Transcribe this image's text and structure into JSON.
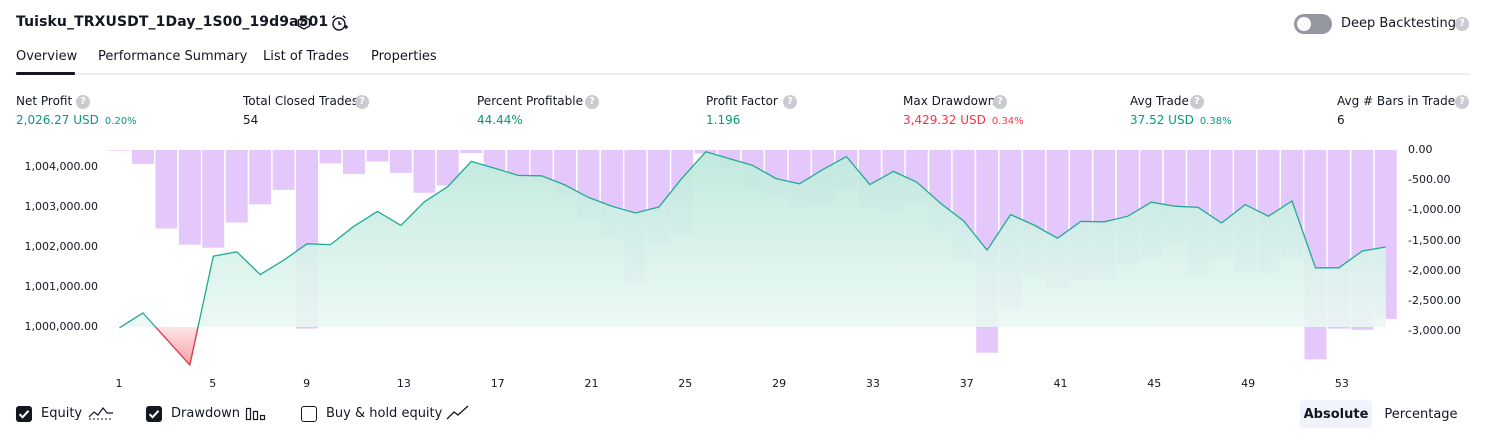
{
  "header": {
    "title": "Tuisku_TRXUSDT_1Day_1S00_19d9a501",
    "settings_icon": "settings-icon",
    "alert_icon": "add-alert-icon",
    "deep_backtesting_label": "Deep Backtesting",
    "deep_backtesting_enabled": false,
    "help_glyph": "?"
  },
  "tabs": [
    {
      "label": "Overview",
      "active": true
    },
    {
      "label": "Performance Summary",
      "active": false
    },
    {
      "label": "List of Trades",
      "active": false
    },
    {
      "label": "Properties",
      "active": false
    }
  ],
  "metrics": {
    "net_profit": {
      "label": "Net Profit",
      "value": "2,026.27 USD",
      "pct": "0.20%"
    },
    "total_closed_trades": {
      "label": "Total Closed Trades",
      "value": "54"
    },
    "percent_profitable": {
      "label": "Percent Profitable",
      "value": "44.44%"
    },
    "profit_factor": {
      "label": "Profit Factor",
      "value": "1.196"
    },
    "max_drawdown": {
      "label": "Max Drawdown",
      "value": "3,429.32 USD",
      "pct": "0.34%"
    },
    "avg_trade": {
      "label": "Avg Trade",
      "value": "37.52 USD",
      "pct": "0.38%"
    },
    "avg_bars": {
      "label": "Avg # Bars in Trades",
      "value": "6"
    }
  },
  "chart_data": {
    "type": "line",
    "equity_ticks": [
      "1,004,000.00",
      "1,003,000.00",
      "1,002,000.00",
      "1,001,000.00",
      "1,000,000.00"
    ],
    "drawdown_ticks": [
      "0.00",
      "-500.00",
      "-1,000.00",
      "-1,500.00",
      "-2,000.00",
      "-2,500.00",
      "-3,000.00"
    ],
    "x_ticks": [
      "1",
      "5",
      "9",
      "13",
      "17",
      "21",
      "25",
      "29",
      "33",
      "37",
      "41",
      "45",
      "49",
      "53"
    ],
    "equity_ylim": [
      999000,
      1004500
    ],
    "drawdown_ylim": [
      -3500,
      0
    ],
    "x": [
      1,
      2,
      3,
      4,
      5,
      6,
      7,
      8,
      9,
      10,
      11,
      12,
      13,
      14,
      15,
      16,
      17,
      18,
      19,
      20,
      21,
      22,
      23,
      24,
      25,
      26,
      27,
      28,
      29,
      30,
      31,
      32,
      33,
      34,
      35,
      36,
      37,
      38,
      39,
      40,
      41,
      42,
      43,
      44,
      45,
      46,
      47,
      48,
      49,
      50,
      51,
      52,
      53,
      54,
      55
    ],
    "equity": [
      999980,
      1000350,
      999700,
      999050,
      1001770,
      1001880,
      1001310,
      1001670,
      1002080,
      1002060,
      1002520,
      1002890,
      1002540,
      1003130,
      1003510,
      1004140,
      1003970,
      1003790,
      1003780,
      1003550,
      1003240,
      1003020,
      1002850,
      1003000,
      1003730,
      1004380,
      1004210,
      1004040,
      1003710,
      1003580,
      1003940,
      1004260,
      1003560,
      1003890,
      1003620,
      1003100,
      1002650,
      1001920,
      1002810,
      1002550,
      1002220,
      1002640,
      1002630,
      1002770,
      1003120,
      1003020,
      1002990,
      1002600,
      1003060,
      1002770,
      1003150,
      1001480,
      1001480,
      1001900,
      1002000
    ],
    "drawdown": [
      0,
      -230,
      -1300,
      -1570,
      -1620,
      -1200,
      -900,
      -660,
      -2960,
      -220,
      -400,
      -190,
      -380,
      -710,
      -590,
      -50,
      -330,
      -440,
      -530,
      -780,
      -1150,
      -1470,
      -2210,
      -1570,
      -1410,
      -60,
      -320,
      -660,
      -780,
      -960,
      -920,
      -620,
      -960,
      -1030,
      -880,
      -1350,
      -1800,
      -3360,
      -2630,
      -2050,
      -2300,
      -2140,
      -2160,
      -1900,
      -1790,
      -1530,
      -2080,
      -1790,
      -2020,
      -2040,
      -1780,
      -3470,
      -2960,
      -2980,
      -2800
    ]
  },
  "legend": {
    "equity": {
      "label": "Equity",
      "checked": true
    },
    "drawdown": {
      "label": "Drawdown",
      "checked": true
    },
    "buy_hold": {
      "label": "Buy & hold equity",
      "checked": false
    }
  },
  "modes": {
    "absolute": "Absolute",
    "percentage": "Percentage",
    "selected": "absolute"
  },
  "colors": {
    "equity_line": "#22ab94",
    "equity_fill": "#c9ede3",
    "loss_fill": "#f7a1a8",
    "loss_line": "#f23645",
    "drawdown_bar": "#e1c2fc",
    "green": "#089981",
    "red": "#f23645"
  }
}
